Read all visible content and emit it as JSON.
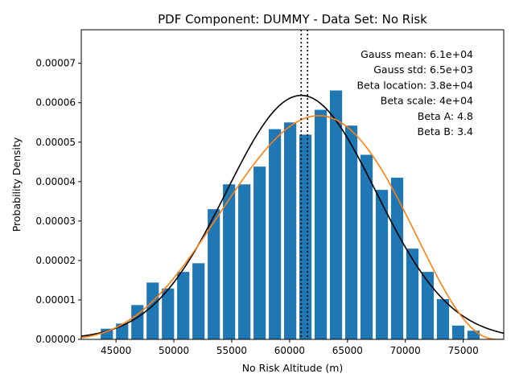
{
  "chart_data": {
    "type": "bar",
    "title": "PDF Component: DUMMY - Data Set: No Risk",
    "xlabel": "No Risk Altitude (m)",
    "ylabel": "Probability Density",
    "xlim": [
      42000,
      78500
    ],
    "ylim": [
      0,
      7.85e-05
    ],
    "xticks": [
      45000,
      50000,
      55000,
      60000,
      65000,
      70000,
      75000
    ],
    "xtick_labels": [
      "45000",
      "50000",
      "55000",
      "60000",
      "65000",
      "70000",
      "75000"
    ],
    "yticks": [
      0,
      1e-05,
      2e-05,
      3e-05,
      4e-05,
      5e-05,
      6e-05,
      7e-05
    ],
    "ytick_labels": [
      "0.00000",
      "0.00001",
      "0.00002",
      "0.00003",
      "0.00004",
      "0.00005",
      "0.00006",
      "0.00007"
    ],
    "grid": false,
    "bar_color": "#1f77b4",
    "histogram": {
      "bin_edges": [
        43550,
        44870,
        46190,
        47510,
        48830,
        50150,
        51470,
        52790,
        54110,
        55430,
        56750,
        58070,
        59390,
        60710,
        62030,
        63350,
        64670,
        65990,
        67310,
        68630,
        69950,
        71270,
        72590,
        73910,
        75230,
        76550
      ],
      "densities": [
        2.7e-06,
        4e-06,
        8.7e-06,
        1.44e-05,
        1.29e-05,
        1.71e-05,
        1.93e-05,
        3.3e-05,
        3.93e-05,
        3.93e-05,
        4.38e-05,
        5.33e-05,
        5.5e-05,
        5.19e-05,
        5.82e-05,
        6.31e-05,
        5.42e-05,
        4.68e-05,
        3.79e-05,
        4.1e-05,
        2.3e-05,
        1.71e-05,
        1.02e-05,
        3.5e-06,
        2.2e-06
      ]
    },
    "gauss": {
      "mean": 61000,
      "std": 6450,
      "color": "#000000"
    },
    "beta": {
      "location": 38000,
      "scale": 40000,
      "a": 4.8,
      "b": 3.4,
      "color": "#ff7f0e"
    },
    "vlines": [
      61000,
      61550
    ],
    "annotations": [
      "Gauss mean: 6.1e+04",
      "Gauss std: 6.5e+03",
      "Beta location: 3.8e+04",
      "Beta scale: 4e+04",
      "Beta A: 4.8",
      "Beta B: 3.4"
    ]
  }
}
